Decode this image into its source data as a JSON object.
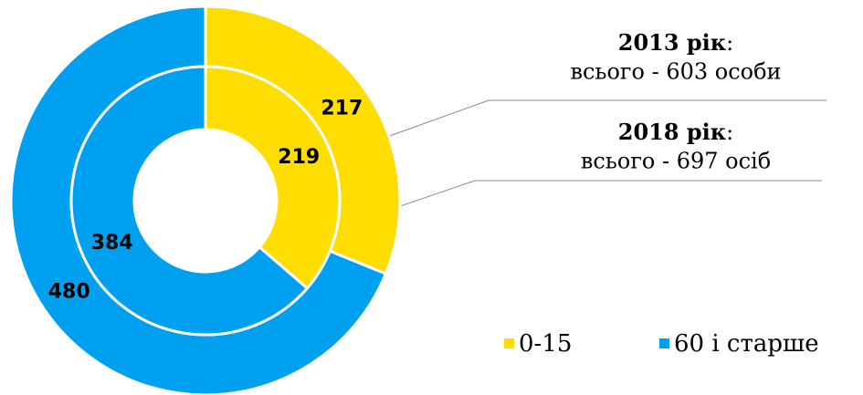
{
  "chart_data": {
    "type": "nested-donut",
    "categories": [
      "0-15",
      "60 і старше"
    ],
    "colors": [
      "#ffdd00",
      "#00a0f0"
    ],
    "rings": [
      {
        "values": [
          217,
          480
        ]
      },
      {
        "values": [
          219,
          384
        ]
      }
    ],
    "annotations": [
      {
        "title": "2013 рік",
        "suffix": ":",
        "text": "всього - 603 особи"
      },
      {
        "title": "2018 рік",
        "suffix": ":",
        "text": "всього - 697 осіб"
      }
    ]
  }
}
